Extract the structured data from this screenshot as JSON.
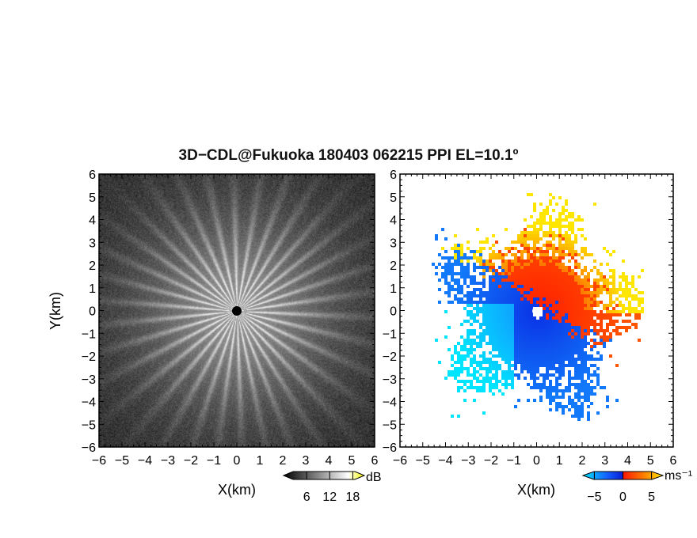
{
  "title": "3D−CDL@Fukuoka 180403 062215 PPI EL=10.1º",
  "chart_data": [
    {
      "type": "heatmap",
      "panel": "left",
      "xlabel": "X(km)",
      "ylabel": "Y(km)",
      "xlim": [
        -6,
        6
      ],
      "ylim": [
        -6,
        6
      ],
      "xticks": [
        "−6",
        "−5",
        "−4",
        "−3",
        "−2",
        "−1",
        "0",
        "1",
        "2",
        "3",
        "4",
        "5",
        "6"
      ],
      "yticks": [
        "6",
        "5",
        "4",
        "3",
        "2",
        "1",
        "0",
        "−1",
        "−2",
        "−3",
        "−4",
        "−5",
        "−6"
      ],
      "colorbar": {
        "label": "dB",
        "ticks": [
          "6",
          "12",
          "18"
        ],
        "range": [
          0,
          21
        ],
        "colors": [
          "#000000",
          "#ffffff",
          "#f5f500"
        ]
      }
    },
    {
      "type": "heatmap",
      "panel": "right",
      "xlabel": "X(km)",
      "ylabel": "",
      "xlim": [
        -6,
        6
      ],
      "ylim": [
        -6,
        6
      ],
      "xticks": [
        "−6",
        "−5",
        "−4",
        "−3",
        "−2",
        "−1",
        "0",
        "1",
        "2",
        "3",
        "4",
        "5",
        "6"
      ],
      "yticks": [
        "6",
        "5",
        "4",
        "3",
        "2",
        "1",
        "0",
        "−1",
        "−2",
        "−3",
        "−4",
        "−5",
        "−6"
      ],
      "colorbar": {
        "label": "ms⁻¹",
        "ticks": [
          "−5",
          "0",
          "5"
        ],
        "range": [
          -7,
          7
        ],
        "colors": [
          "#00e5ff",
          "#1560ff",
          "#0a1fd6",
          "#ff1a00",
          "#ff7a00",
          "#ffe600"
        ]
      }
    }
  ]
}
